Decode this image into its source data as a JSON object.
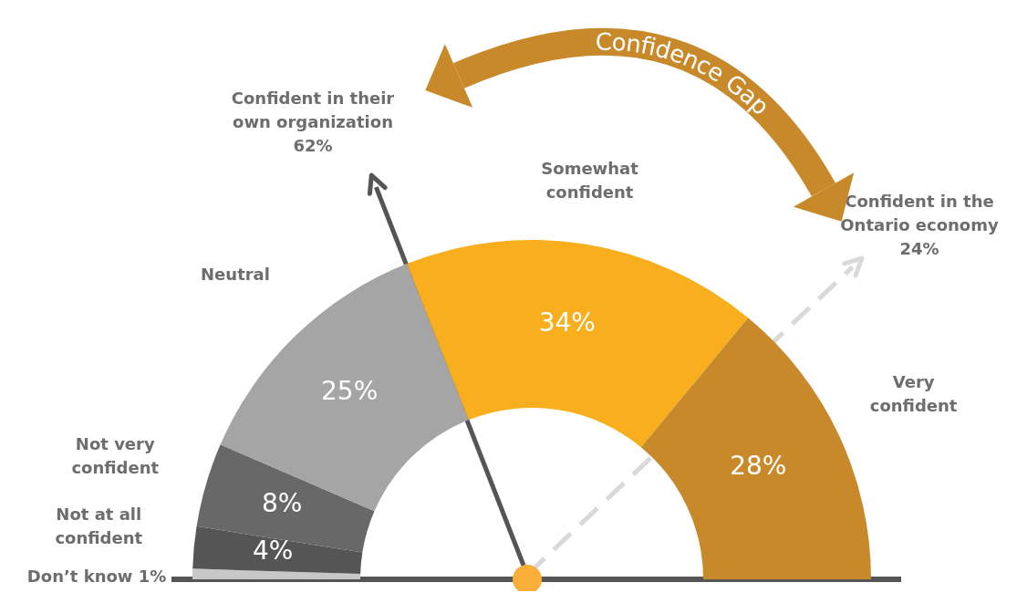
{
  "chart_data": {
    "type": "donut",
    "categories": [
      "Don’t know",
      "Not at all confident",
      "Not very confident",
      "Neutral",
      "Somewhat confident",
      "Very confident"
    ],
    "values": [
      1,
      4,
      8,
      25,
      34,
      28
    ],
    "colors": [
      "#c8c8c8",
      "#555555",
      "#686868",
      "#a6a5a5",
      "#f9ae1e",
      "#c8892a"
    ],
    "value_labels": [
      "1%",
      "4%",
      "8%",
      "25%",
      "34%",
      "28%"
    ],
    "annotations": [
      "Confident in their own organization 62%",
      "Confident in the Ontario economy 24%",
      "Confidence Gap"
    ]
  }
}
